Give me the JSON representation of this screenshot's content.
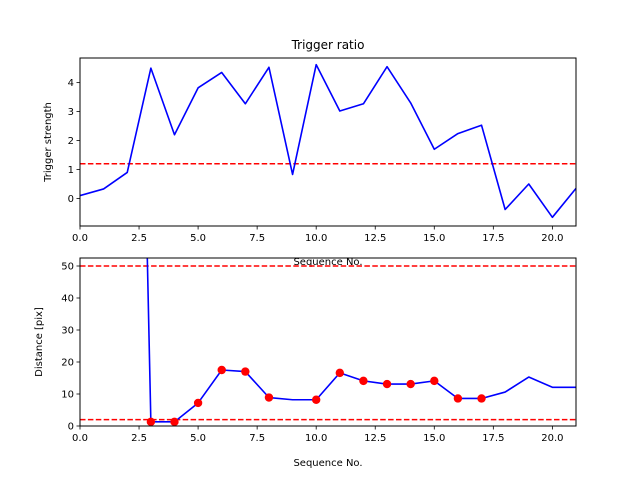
{
  "chart_data": [
    {
      "type": "line",
      "title": "Trigger ratio",
      "xlabel": "Sequence No.",
      "ylabel": "Trigger strength",
      "xlim": [
        0,
        21
      ],
      "ylim": [
        -0.95,
        4.85
      ],
      "xticks": [
        0,
        2.5,
        5,
        7.5,
        10,
        12.5,
        15,
        17.5,
        20
      ],
      "xtick_labels": [
        "0.0",
        "2.5",
        "5.0",
        "7.5",
        "10.0",
        "12.5",
        "15.0",
        "17.5",
        "20.0"
      ],
      "yticks": [
        0,
        1,
        2,
        3,
        4
      ],
      "ytick_labels": [
        "0",
        "1",
        "2",
        "3",
        "4"
      ],
      "grid": false,
      "series": [
        {
          "color": "#0000ff",
          "x": [
            0,
            1,
            2,
            3,
            4,
            5,
            6,
            7,
            8,
            9,
            10,
            11,
            12,
            13,
            14,
            15,
            16,
            17,
            18,
            19,
            20,
            21
          ],
          "values": [
            0.1,
            0.33,
            0.9,
            4.5,
            2.2,
            3.82,
            4.35,
            3.27,
            4.53,
            0.83,
            4.62,
            3.02,
            3.27,
            4.55,
            3.3,
            1.7,
            2.24,
            2.53,
            -0.38,
            0.5,
            -0.65,
            0.35
          ]
        }
      ],
      "hlines": [
        {
          "y": 1.2,
          "color": "#ff0000",
          "style": "dashed"
        }
      ]
    },
    {
      "type": "line",
      "xlabel": "Sequence No.",
      "ylabel": "Distance [pix]",
      "xlim": [
        0,
        21
      ],
      "ylim": [
        0,
        52.5
      ],
      "xticks": [
        0,
        2.5,
        5,
        7.5,
        10,
        12.5,
        15,
        17.5,
        20
      ],
      "xtick_labels": [
        "0.0",
        "2.5",
        "5.0",
        "7.5",
        "10.0",
        "12.5",
        "15.0",
        "17.5",
        "20.0"
      ],
      "yticks": [
        0,
        10,
        20,
        30,
        40,
        50
      ],
      "ytick_labels": [
        "0",
        "10",
        "20",
        "30",
        "40",
        "50"
      ],
      "grid": false,
      "series": [
        {
          "color": "#0000ff",
          "x": [
            2.85,
            3,
            4,
            5,
            6,
            7,
            8,
            9,
            10,
            11,
            12,
            13,
            14,
            15,
            16,
            17,
            18,
            19,
            20,
            21
          ],
          "values": [
            52.5,
            1.3,
            1.3,
            7.2,
            17.5,
            17.0,
            8.9,
            8.2,
            8.2,
            16.6,
            14.1,
            13.1,
            13.1,
            14.1,
            8.6,
            8.6,
            10.6,
            15.3,
            12.1,
            12.1
          ]
        },
        {
          "type": "scatter",
          "color": "#ff0000",
          "x": [
            3,
            4,
            5,
            6,
            7,
            8,
            10,
            11,
            12,
            13,
            14,
            15,
            16,
            17
          ],
          "values": [
            1.3,
            1.3,
            7.2,
            17.5,
            17.0,
            8.9,
            8.2,
            16.6,
            14.1,
            13.1,
            13.1,
            14.1,
            8.6,
            8.6
          ]
        }
      ],
      "hlines": [
        {
          "y": 50,
          "color": "#ff0000",
          "style": "dashed"
        },
        {
          "y": 2,
          "color": "#ff0000",
          "style": "dashed"
        }
      ]
    }
  ]
}
